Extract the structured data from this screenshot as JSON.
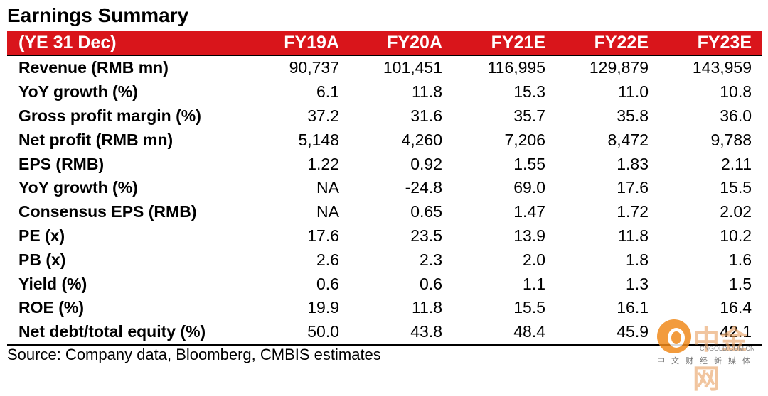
{
  "title": "Earnings Summary",
  "header": [
    "(YE 31 Dec)",
    "FY19A",
    "FY20A",
    "FY21E",
    "FY22E",
    "FY23E"
  ],
  "rows": [
    {
      "label": "Revenue (RMB mn)",
      "values": [
        "90,737",
        "101,451",
        "116,995",
        "129,879",
        "143,959"
      ]
    },
    {
      "label": "YoY growth (%)",
      "values": [
        "6.1",
        "11.8",
        "15.3",
        "11.0",
        "10.8"
      ]
    },
    {
      "label": "Gross profit margin (%)",
      "values": [
        "37.2",
        "31.6",
        "35.7",
        "35.8",
        "36.0"
      ]
    },
    {
      "label": "Net profit (RMB mn)",
      "values": [
        "5,148",
        "4,260",
        "7,206",
        "8,472",
        "9,788"
      ]
    },
    {
      "label": "EPS (RMB)",
      "values": [
        "1.22",
        "0.92",
        "1.55",
        "1.83",
        "2.11"
      ]
    },
    {
      "label": "YoY growth (%)",
      "values": [
        "NA",
        "-24.8",
        "69.0",
        "17.6",
        "15.5"
      ]
    },
    {
      "label": "Consensus EPS (RMB)",
      "values": [
        "NA",
        "0.65",
        "1.47",
        "1.72",
        "2.02"
      ]
    },
    {
      "label": "PE (x)",
      "values": [
        "17.6",
        "23.5",
        "13.9",
        "11.8",
        "10.2"
      ]
    },
    {
      "label": "PB (x)",
      "values": [
        "2.6",
        "2.3",
        "2.0",
        "1.8",
        "1.6"
      ]
    },
    {
      "label": "Yield (%)",
      "values": [
        "0.6",
        "0.6",
        "1.1",
        "1.3",
        "1.5"
      ]
    },
    {
      "label": "ROE (%)",
      "values": [
        "19.9",
        "11.8",
        "15.5",
        "16.1",
        "16.4"
      ]
    },
    {
      "label": "Net debt/total equity (%)",
      "values": [
        "50.0",
        "43.8",
        "48.4",
        "45.9",
        "42.1"
      ]
    }
  ],
  "source": "Source: Company data, Bloomberg, CMBIS estimates",
  "watermark": {
    "brand": "中金网",
    "url": "CNGOLD.COM.CN",
    "sub": "中文财经新媒体"
  },
  "colors": {
    "header_bg": "#d9151b",
    "header_text": "#ffffff"
  }
}
